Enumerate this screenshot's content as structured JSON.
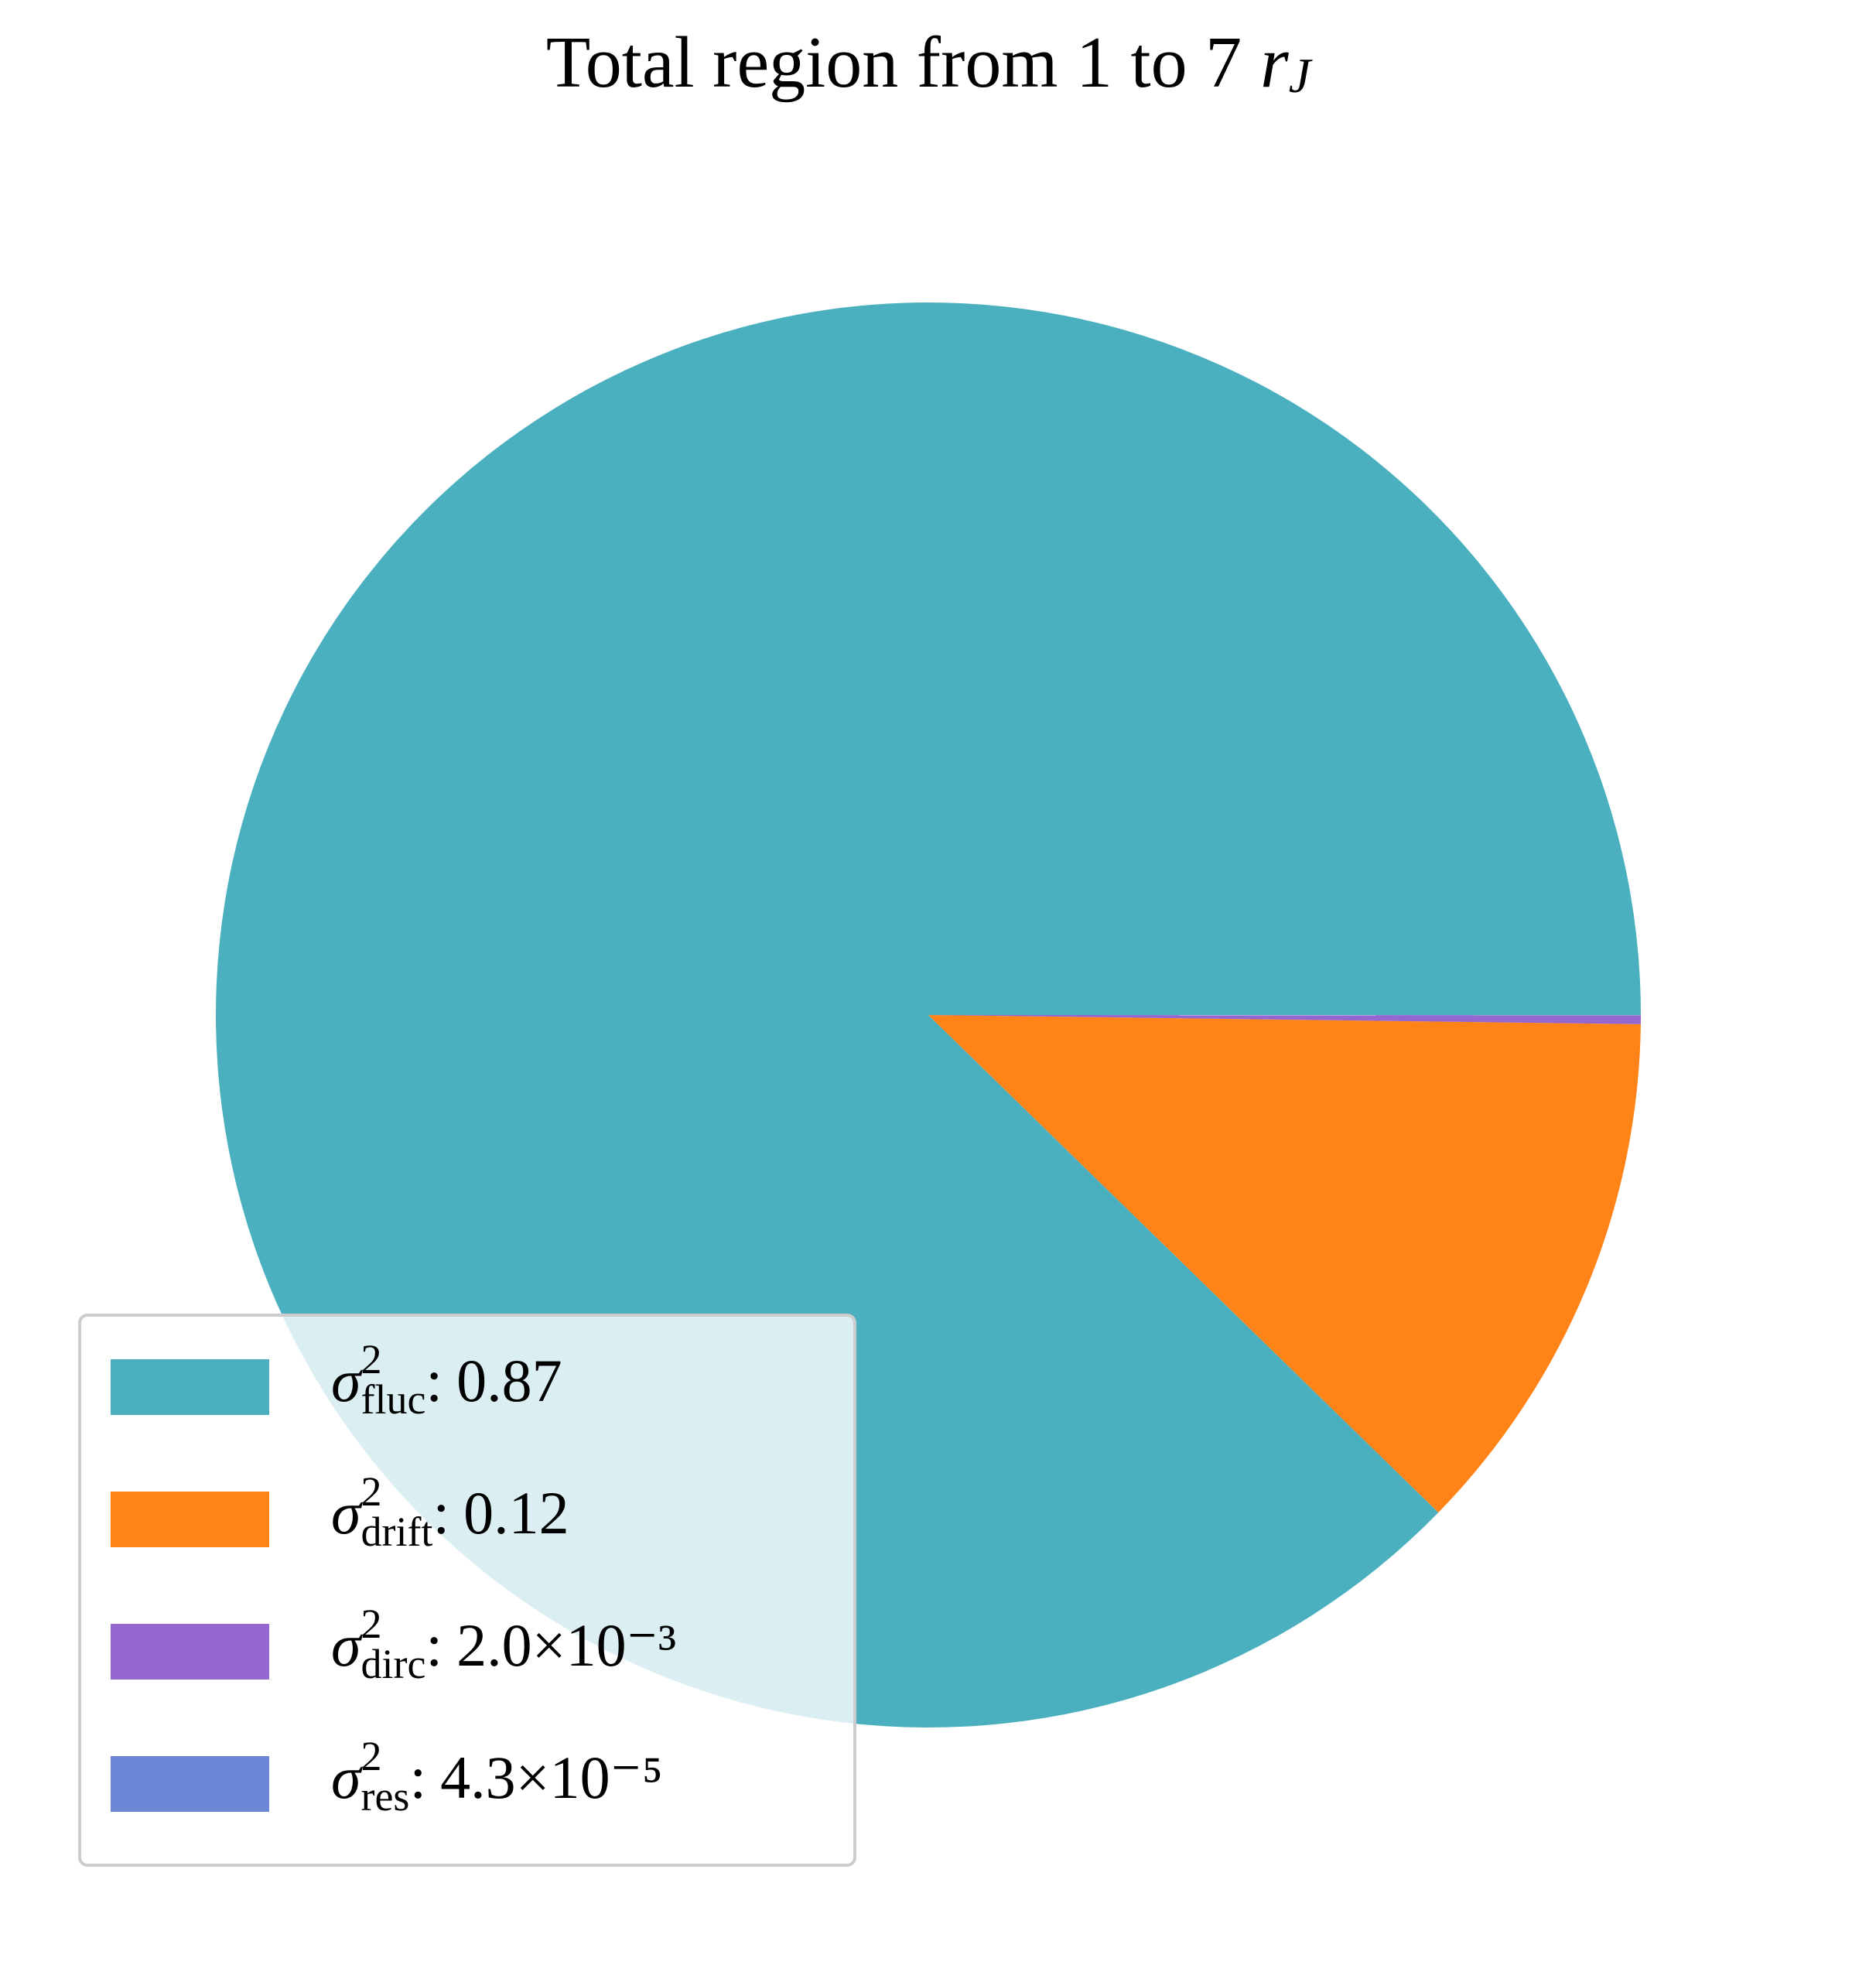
{
  "chart_data": {
    "type": "pie",
    "title": "Total region from 1 to 7",
    "title_symbol": "r",
    "title_subscript": "J",
    "symbol": "σ",
    "symbol_power": "2",
    "separator": ":",
    "categories": [
      "fluc",
      "drift",
      "dirc",
      "res"
    ],
    "values": [
      0.87,
      0.12,
      0.002,
      4.3e-05
    ],
    "value_labels": [
      "0.87",
      "0.12",
      "2.0×10⁻³",
      "4.3×10⁻⁵"
    ],
    "colors": [
      "#4ab0bf",
      "#ff8316",
      "#9467d0",
      "#6a86d4"
    ],
    "legend": "lower left"
  }
}
